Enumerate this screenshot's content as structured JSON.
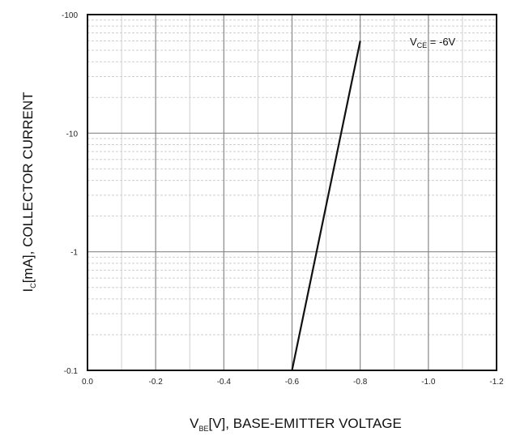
{
  "chart_data": {
    "type": "line",
    "x_axis": {
      "label_main": "V",
      "label_sub": "BE",
      "label_rest": "[V], BASE-EMITTER VOLTAGE",
      "ticks": [
        0.0,
        -0.2,
        -0.4,
        -0.6,
        -0.8,
        -1.0,
        -1.2
      ],
      "tick_labels": [
        "0.0",
        "-0.2",
        "-0.4",
        "-0.6",
        "-0.8",
        "-1.0",
        "-1.2"
      ],
      "range": [
        0.0,
        -1.2
      ],
      "minor_step": 0.1
    },
    "y_axis": {
      "label_main": "I",
      "label_sub": "C",
      "label_rest": "[mA], COLLECTOR CURRENT",
      "scale": "log",
      "ticks": [
        -0.1,
        -1,
        -10,
        -100
      ],
      "tick_labels": [
        "-0.1",
        "-1",
        "-10",
        "-100"
      ],
      "range_magnitude": [
        0.1,
        100
      ]
    },
    "annotation": {
      "main": "V",
      "sub": "CE",
      "rest": " = -6V",
      "corner": "top-right"
    },
    "series": [
      {
        "x": [
          -0.6,
          -0.8
        ],
        "y": [
          -0.1,
          -60
        ]
      }
    ],
    "grid": true,
    "colors": {
      "line": "#111111",
      "grid_major": "#888888",
      "grid_minor": "#cfcfcf",
      "frame": "#111111"
    }
  }
}
